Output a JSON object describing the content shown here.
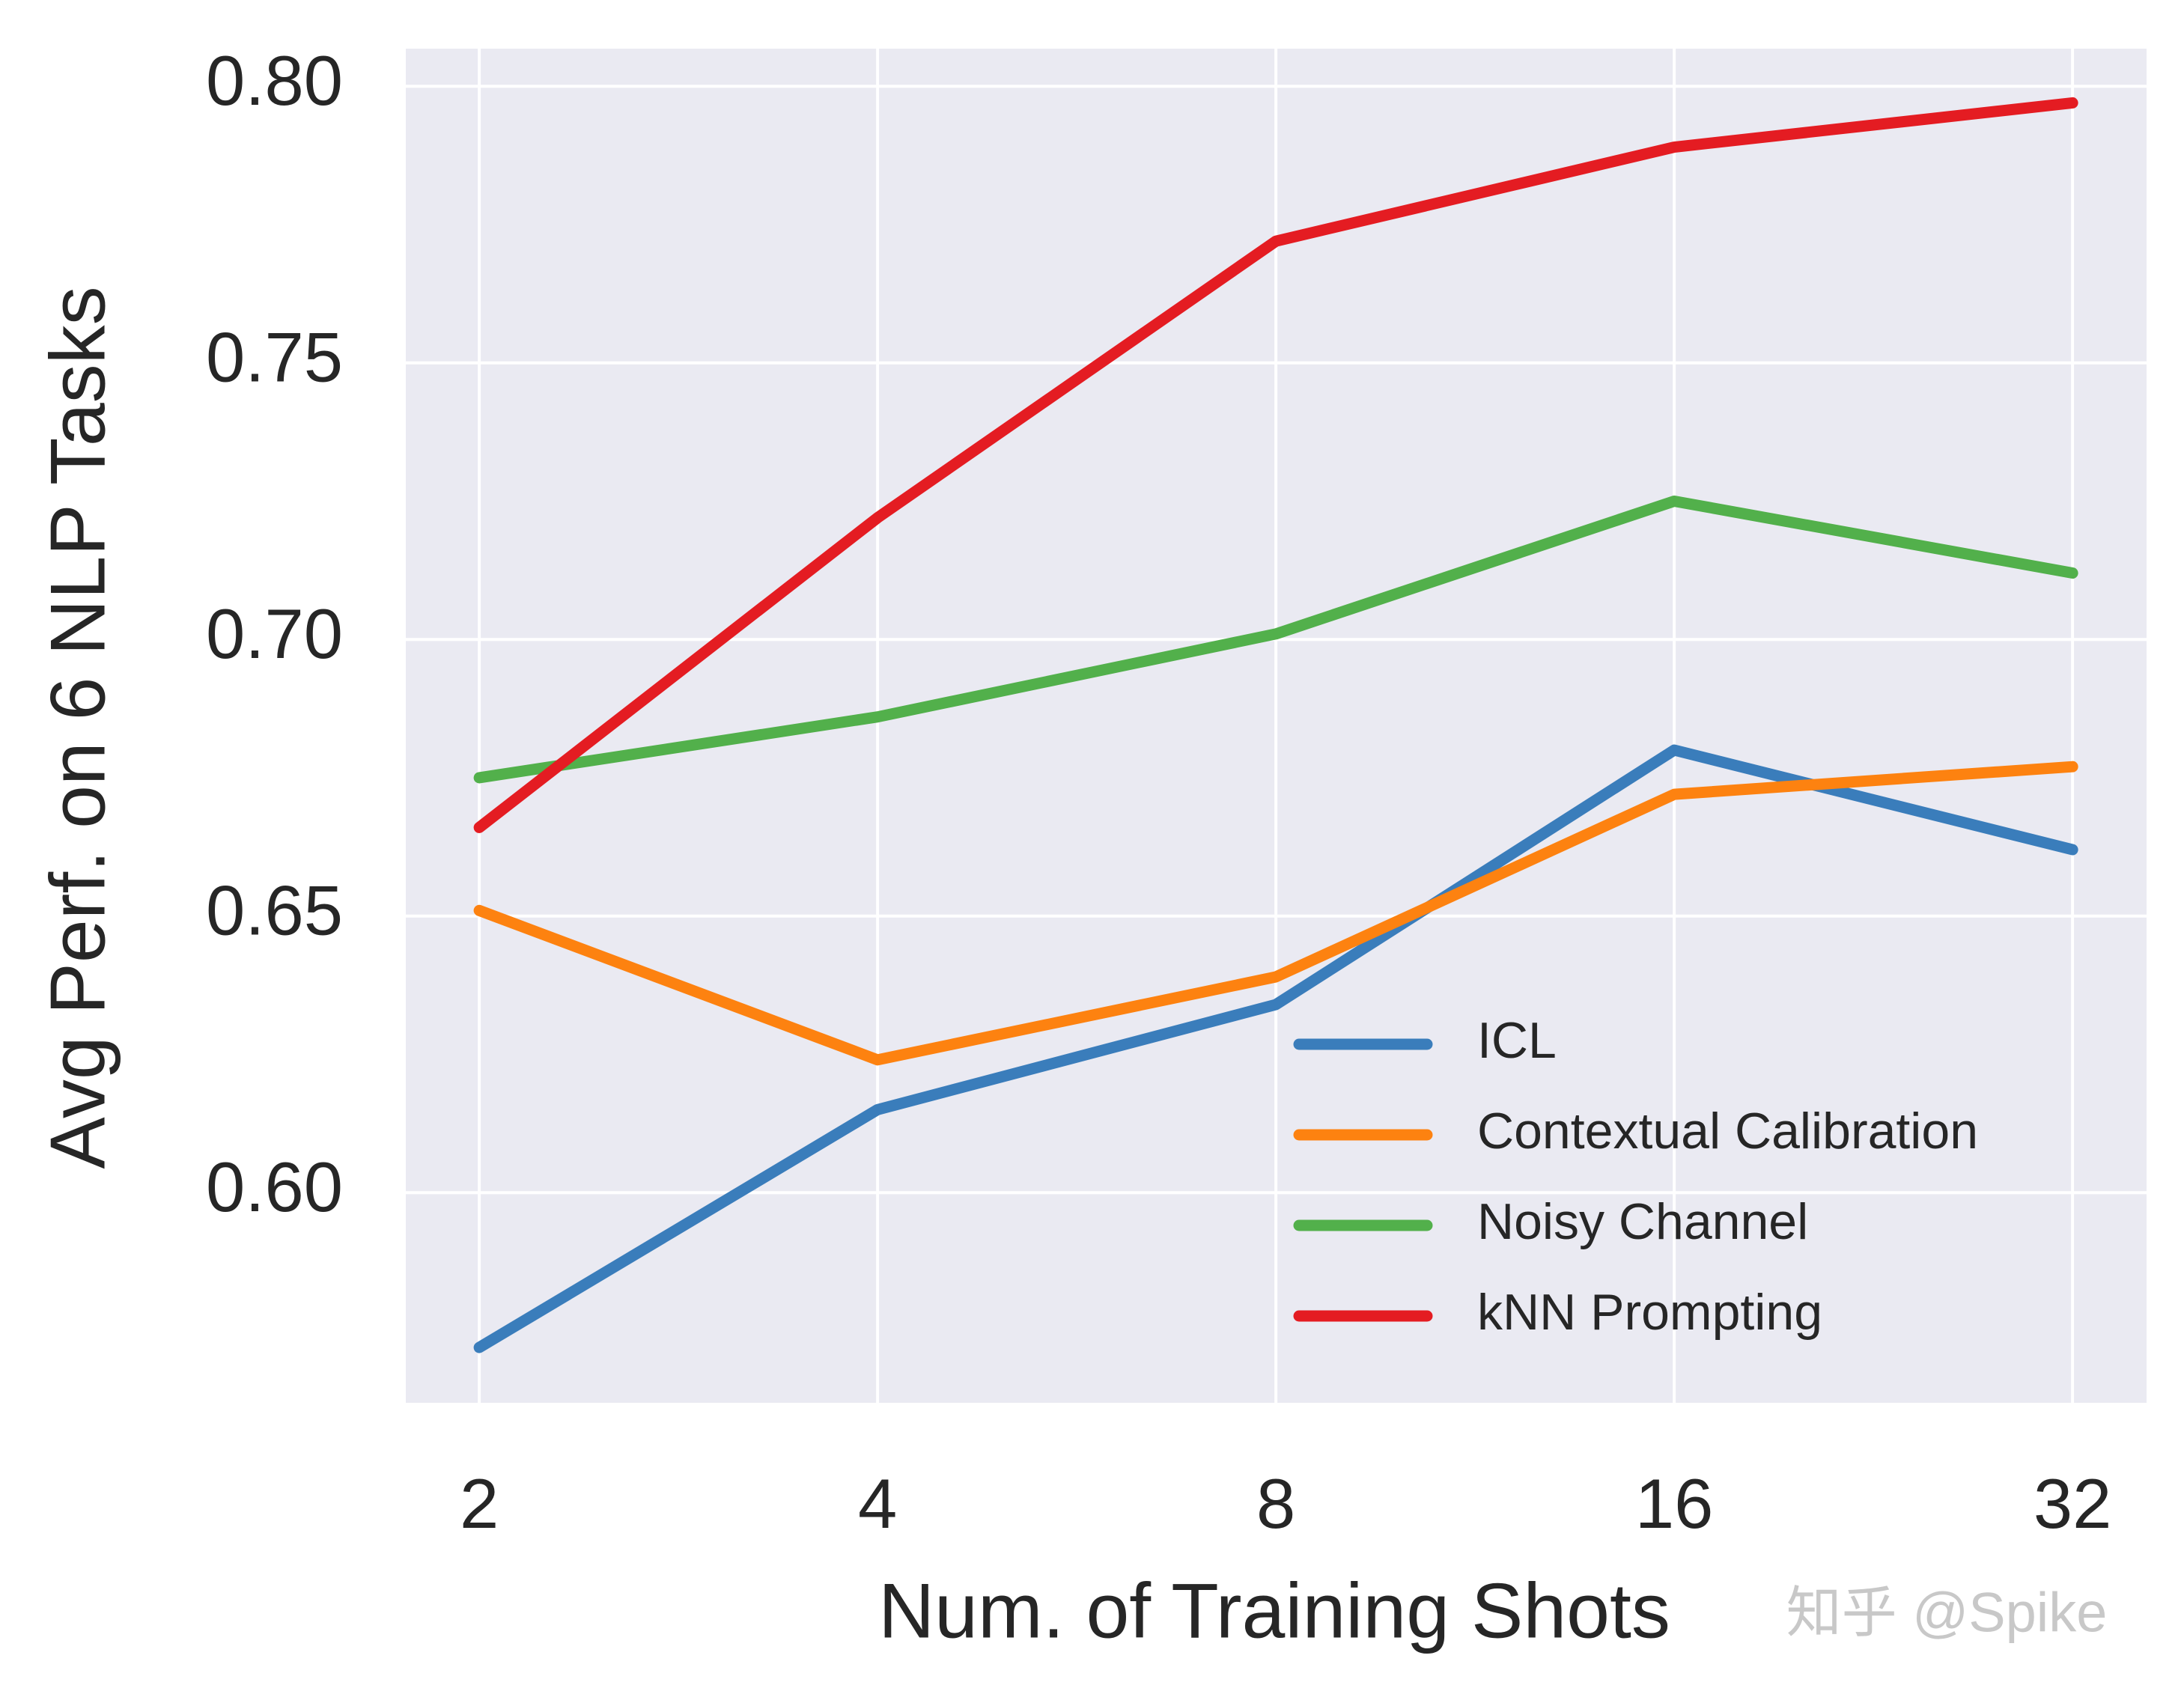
{
  "chart_data": {
    "type": "line",
    "x": [
      2,
      4,
      8,
      16,
      32
    ],
    "xscale": "log2",
    "xlim": [
      1.76,
      36.4
    ],
    "xticks": [
      2,
      4,
      8,
      16,
      32
    ],
    "ylim": [
      0.562,
      0.8068
    ],
    "yticks": [
      {
        "value": 0.6,
        "label": "0.60"
      },
      {
        "value": 0.65,
        "label": "0.65"
      },
      {
        "value": 0.7,
        "label": "0.70"
      },
      {
        "value": 0.75,
        "label": "0.75"
      },
      {
        "value": 0.8,
        "label": "0.80"
      }
    ],
    "xlabel": "Num. of Training Shots",
    "ylabel": "Avg Perf. on 6 NLP Tasks",
    "grid": true,
    "legend": "lower right",
    "watermark": "知乎 @Spike",
    "series": [
      {
        "name": "ICL",
        "color": "#3a7dbb",
        "values": [
          0.572,
          0.615,
          0.634,
          0.68,
          0.662
        ]
      },
      {
        "name": "Contextual Calibration",
        "color": "#fd8210",
        "values": [
          0.651,
          0.624,
          0.639,
          0.672,
          0.677
        ]
      },
      {
        "name": "Noisy Channel",
        "color": "#52b04b",
        "values": [
          0.675,
          0.686,
          0.701,
          0.725,
          0.712
        ]
      },
      {
        "name": "kNN Prompting",
        "color": "#e41c22",
        "values": [
          0.666,
          0.722,
          0.772,
          0.789,
          0.797
        ]
      }
    ]
  }
}
